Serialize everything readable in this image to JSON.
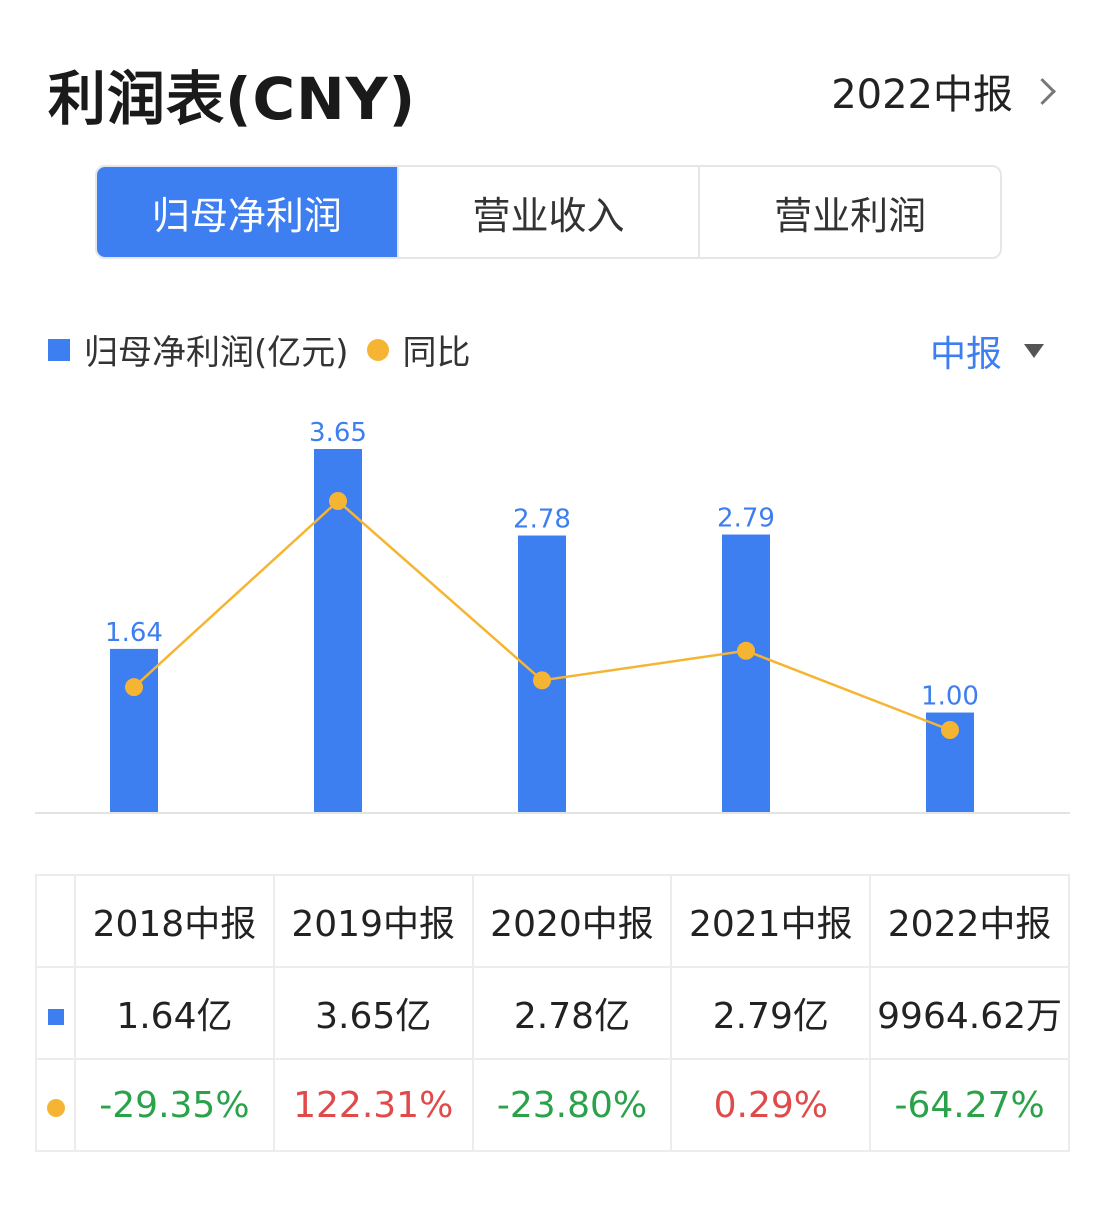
{
  "header": {
    "title": "利润表(CNY)",
    "period": "2022中报"
  },
  "tabs": [
    "归母净利润",
    "营业收入",
    "营业利润"
  ],
  "legend": {
    "bar": "归母净利润(亿元)",
    "line": "同比"
  },
  "period_select": "中报",
  "colors": {
    "bar": "#3d7ef0",
    "line": "#f5b533",
    "positive": "#e04a4a",
    "negative": "#2aa24a"
  },
  "chart_data": {
    "type": "bar",
    "categories": [
      "2018中报",
      "2019中报",
      "2020中报",
      "2021中报",
      "2022中报"
    ],
    "series": [
      {
        "name": "归母净利润(亿元)",
        "type": "bar",
        "values": [
          1.64,
          3.65,
          2.78,
          2.79,
          1.0
        ],
        "labels": [
          "1.64",
          "3.65",
          "2.78",
          "2.79",
          "1.00"
        ]
      },
      {
        "name": "同比",
        "type": "line",
        "values": [
          -29.35,
          122.31,
          -23.8,
          0.29,
          -64.27
        ]
      }
    ],
    "legend_position": "top-left",
    "grid": false
  },
  "table": {
    "headers": [
      "2018中报",
      "2019中报",
      "2020中报",
      "2021中报",
      "2022中报"
    ],
    "values": [
      "1.64亿",
      "3.65亿",
      "2.78亿",
      "2.79亿",
      "9964.62万"
    ],
    "yoy": [
      "-29.35%",
      "122.31%",
      "-23.80%",
      "0.29%",
      "-64.27%"
    ]
  }
}
